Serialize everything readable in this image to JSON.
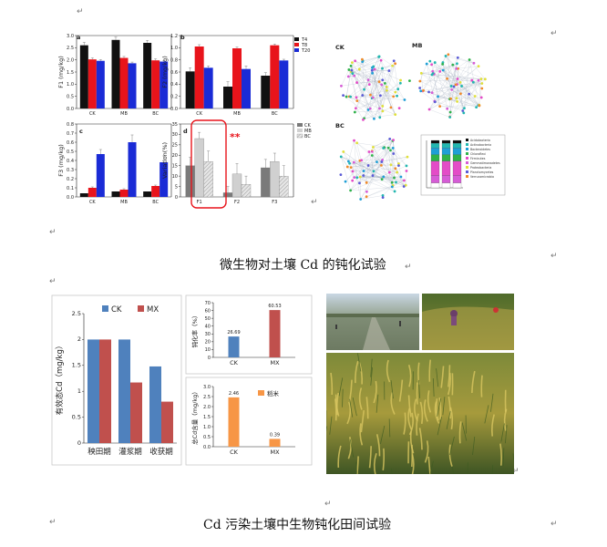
{
  "paragraph_mark": "↵",
  "captions": {
    "top": "微生物对土壤 Cd 的钝化试验",
    "bottom": "Cd 污染土壤中生物钝化田间试验"
  },
  "figure_top": {
    "panel_letters": [
      "a",
      "b",
      "c",
      "d"
    ],
    "legend_time": [
      "T4",
      "T8",
      "T20"
    ],
    "legend_treat": [
      "CK",
      "MB",
      "BC"
    ],
    "network_labels": [
      "CK",
      "MB",
      "BC"
    ],
    "colors": {
      "black": "#111111",
      "red": "#e8141b",
      "blue": "#1a2bd6"
    },
    "significance_mark": "**",
    "stacked_legend": [
      "Acidobacteria",
      "Actinobacteria",
      "Bacteroidetes",
      "Chloroflexi",
      "Firmicutes",
      "Gemmatimonadetes",
      "Proteobacteria",
      "Planctomycetes",
      "Verrucomicrobia"
    ]
  },
  "chart_data": [
    {
      "type": "bar",
      "ylabel": "F1 (mg/kg)",
      "categories": [
        "CK",
        "MB",
        "BC"
      ],
      "ylim": [
        0,
        3.0
      ],
      "yticks": [
        "0.0",
        "0.5",
        "1.0",
        "1.5",
        "2.0",
        "2.5",
        "3.0"
      ],
      "series": [
        {
          "name": "T4",
          "values": [
            2.6,
            2.82,
            2.7
          ]
        },
        {
          "name": "T8",
          "values": [
            2.02,
            2.08,
            1.98
          ]
        },
        {
          "name": "T20",
          "values": [
            1.96,
            1.86,
            1.93
          ]
        }
      ]
    },
    {
      "type": "bar",
      "ylabel": "F2 (mg/kg)",
      "categories": [
        "CK",
        "MB",
        "BC"
      ],
      "ylim": [
        0,
        1.2
      ],
      "yticks": [
        "0.0",
        "0.2",
        "0.4",
        "0.6",
        "0.8",
        "1.0",
        "1.2"
      ],
      "series": [
        {
          "name": "T4",
          "values": [
            0.61,
            0.36,
            0.54
          ]
        },
        {
          "name": "T8",
          "values": [
            1.02,
            0.99,
            1.04
          ]
        },
        {
          "name": "T20",
          "values": [
            0.67,
            0.65,
            0.79
          ]
        }
      ]
    },
    {
      "type": "bar",
      "ylabel": "F3 (mg/kg)",
      "categories": [
        "CK",
        "MB",
        "BC"
      ],
      "ylim": [
        0,
        0.8
      ],
      "yticks": [
        "0.0",
        "0.1",
        "0.2",
        "0.3",
        "0.4",
        "0.5",
        "0.6",
        "0.7",
        "0.8"
      ],
      "series": [
        {
          "name": "T4",
          "values": [
            0.04,
            0.06,
            0.06
          ]
        },
        {
          "name": "T8",
          "values": [
            0.1,
            0.08,
            0.12
          ]
        },
        {
          "name": "T20",
          "values": [
            0.47,
            0.6,
            0.38
          ]
        }
      ]
    },
    {
      "type": "bar",
      "ylabel": "Variation(%)",
      "categories": [
        "F1",
        "F2",
        "F3"
      ],
      "ylim": [
        0,
        35
      ],
      "yticks": [
        "0",
        "5",
        "10",
        "15",
        "20",
        "25",
        "30",
        "35"
      ],
      "series": [
        {
          "name": "CK",
          "values": [
            15,
            2,
            14
          ]
        },
        {
          "name": "MB",
          "values": [
            28,
            11,
            17
          ]
        },
        {
          "name": "BC",
          "values": [
            17,
            6,
            10
          ]
        }
      ]
    },
    {
      "type": "bar",
      "ylabel": "有效态Cd（mg/kg）",
      "categories": [
        "秧田期",
        "灌浆期",
        "收获期"
      ],
      "ylim": [
        0,
        2.5
      ],
      "yticks": [
        "0",
        "0.5",
        "1",
        "1.5",
        "2",
        "2.5"
      ],
      "series": [
        {
          "name": "CK",
          "values": [
            2.0,
            2.0,
            1.48
          ]
        },
        {
          "name": "MX",
          "values": [
            2.0,
            1.17,
            0.8
          ]
        }
      ]
    },
    {
      "type": "bar",
      "ylabel": "钝化率（%）",
      "categories": [
        "CK",
        "MX"
      ],
      "ylim": [
        0,
        70
      ],
      "yticks": [
        "0",
        "10",
        "20",
        "30",
        "40",
        "50",
        "60",
        "70"
      ],
      "values": [
        26.69,
        60.53
      ],
      "data_labels": [
        "26.69",
        "60.53"
      ]
    },
    {
      "type": "bar",
      "ylabel": "总Cd含量（mg/kg）",
      "categories": [
        "CK",
        "MX"
      ],
      "ylim": [
        0,
        3.0
      ],
      "yticks": [
        "0.0",
        "0.5",
        "1.0",
        "1.5",
        "2.0",
        "2.5",
        "3.0"
      ],
      "series": [
        {
          "name": "稻米",
          "values": [
            2.46,
            0.39
          ]
        }
      ],
      "data_labels": [
        "2.46",
        "0.39"
      ]
    }
  ]
}
